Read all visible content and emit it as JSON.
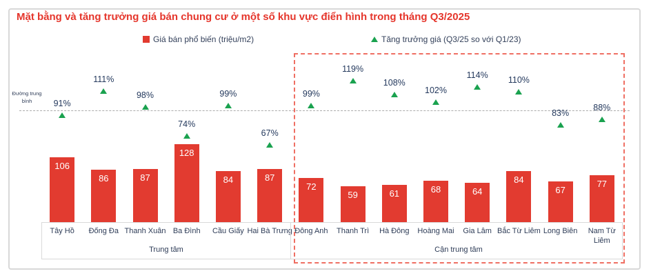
{
  "card": {
    "title": "Mặt bằng và tăng trưởng giá bán chung cư ở một số khu vực điển hình trong tháng Q3/2025"
  },
  "legend": {
    "price": {
      "label": "Giá bán phổ biến (triệu/m2)",
      "marker": "square",
      "color": "#e23b30"
    },
    "growth": {
      "label": "Tăng trưởng giá (Q3/25 so với Q1/23)",
      "marker": "triangle",
      "color": "#1aa24f"
    }
  },
  "average_line": {
    "label": "Đường trung bình",
    "approx_pct": 95
  },
  "chart_data": {
    "type": "bar",
    "title": "Mặt bằng và tăng trưởng giá bán chung cư ở một số khu vực điển hình trong tháng Q3/2025",
    "legend_position": "top",
    "grid": false,
    "categories": [
      "Tây Hồ",
      "Đống Đa",
      "Thanh Xuân",
      "Ba Đình",
      "Cầu Giấy",
      "Hai Bà Trưng",
      "Đông Anh",
      "Thanh Trì",
      "Hà Đông",
      "Hoàng Mai",
      "Gia Lâm",
      "Bắc Từ Liêm",
      "Long Biên",
      "Nam Từ Liêm"
    ],
    "groups": [
      {
        "label": "Trung tâm",
        "categories_count": 6,
        "highlighted": false
      },
      {
        "label": "Cận trung tâm",
        "categories_count": 8,
        "highlighted": true
      }
    ],
    "series": [
      {
        "name": "Giá bán phổ biến (triệu/m2)",
        "type": "bar",
        "unit": "triệu/m2",
        "color": "#e23b30",
        "values": [
          106,
          86,
          87,
          128,
          84,
          87,
          72,
          59,
          61,
          68,
          64,
          84,
          67,
          77
        ]
      },
      {
        "name": "Tăng trưởng giá (Q3/25 so với Q1/23)",
        "type": "point-triangle",
        "unit": "%",
        "color": "#1aa24f",
        "values": [
          91,
          111,
          98,
          74,
          99,
          67,
          99,
          119,
          108,
          102,
          114,
          110,
          83,
          88
        ]
      }
    ],
    "annotations": {
      "average_line_label": "Đường trung bình",
      "average_line_pct": 95
    }
  },
  "colors": {
    "bar_red": "#e23b30",
    "title_red": "#e5352b",
    "growth_green": "#1aa24f",
    "label_navy": "#24395d",
    "avg_line_gray": "#ababab",
    "highlight_dashed_red": "#ef6e62",
    "box_border_gray": "#d9d9d9"
  }
}
